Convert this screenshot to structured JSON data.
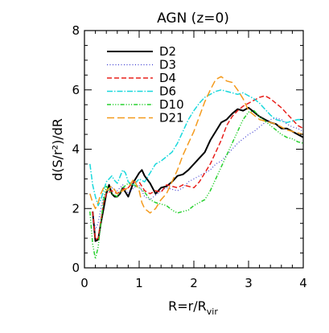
{
  "chart_data": {
    "type": "line",
    "title": "AGN (z=0)",
    "xlabel": "R=r/R_vir",
    "xlabel_main": "R=r/R",
    "xlabel_sub": "vir",
    "ylabel": "d(S/r²)/dR",
    "xlim": [
      0,
      4
    ],
    "ylim": [
      0,
      8
    ],
    "xticks": [
      0,
      1,
      2,
      3,
      4
    ],
    "yticks": [
      0,
      2,
      4,
      6,
      8
    ],
    "grid": false,
    "legend_position": "top-left",
    "series": [
      {
        "name": "D2",
        "color": "#000000",
        "dash": "",
        "width": 2,
        "x": [
          0.15,
          0.2,
          0.25,
          0.3,
          0.35,
          0.4,
          0.45,
          0.5,
          0.55,
          0.6,
          0.65,
          0.7,
          0.8,
          0.9,
          1.0,
          1.05,
          1.1,
          1.2,
          1.3,
          1.4,
          1.5,
          1.6,
          1.7,
          1.8,
          1.9,
          2.0,
          2.1,
          2.2,
          2.3,
          2.4,
          2.5,
          2.6,
          2.7,
          2.8,
          2.9,
          3.0,
          3.1,
          3.2,
          3.3,
          3.4,
          3.5,
          3.6,
          3.7,
          3.8,
          3.9,
          4.0
        ],
        "y": [
          1.9,
          0.9,
          0.95,
          1.5,
          2.0,
          2.5,
          2.8,
          2.5,
          2.4,
          2.4,
          2.5,
          2.7,
          2.4,
          2.9,
          3.2,
          3.3,
          3.1,
          2.85,
          2.5,
          2.7,
          2.75,
          2.9,
          3.1,
          3.15,
          3.3,
          3.5,
          3.7,
          3.9,
          4.3,
          4.6,
          4.9,
          5.0,
          5.2,
          5.35,
          5.3,
          5.4,
          5.25,
          5.1,
          5.0,
          4.9,
          4.85,
          4.7,
          4.7,
          4.6,
          4.5,
          4.4
        ]
      },
      {
        "name": "D3",
        "color": "#3b3bd1",
        "dash": "1,2.5",
        "width": 1.2,
        "x": [
          0.15,
          0.2,
          0.25,
          0.3,
          0.35,
          0.4,
          0.5,
          0.6,
          0.7,
          0.8,
          0.9,
          1.0,
          1.1,
          1.2,
          1.3,
          1.4,
          1.5,
          1.6,
          1.7,
          1.8,
          1.9,
          2.0,
          2.1,
          2.2,
          2.3,
          2.4,
          2.5,
          2.6,
          2.7,
          2.8,
          2.9,
          3.0,
          3.1,
          3.2,
          3.3,
          3.4,
          3.5,
          3.6,
          3.7,
          3.8,
          3.9,
          4.0
        ],
        "y": [
          1.9,
          1.3,
          1.5,
          2.0,
          2.4,
          2.6,
          2.7,
          2.6,
          2.8,
          2.5,
          2.7,
          2.8,
          2.4,
          2.3,
          2.45,
          2.6,
          2.7,
          2.65,
          2.6,
          2.7,
          2.9,
          3.0,
          3.1,
          3.2,
          3.3,
          3.5,
          3.6,
          3.8,
          4.0,
          4.2,
          4.35,
          4.5,
          4.6,
          4.75,
          4.9,
          5.0,
          5.05,
          5.0,
          4.85,
          4.75,
          4.7,
          4.6
        ]
      },
      {
        "name": "D4",
        "color": "#e8201c",
        "dash": "6,3",
        "width": 1.5,
        "x": [
          0.15,
          0.2,
          0.25,
          0.3,
          0.35,
          0.4,
          0.5,
          0.6,
          0.7,
          0.8,
          0.9,
          1.0,
          1.1,
          1.2,
          1.3,
          1.4,
          1.5,
          1.6,
          1.7,
          1.8,
          1.9,
          2.0,
          2.1,
          2.2,
          2.3,
          2.4,
          2.5,
          2.6,
          2.7,
          2.8,
          2.9,
          3.0,
          3.1,
          3.2,
          3.3,
          3.4,
          3.5,
          3.6,
          3.7,
          3.8,
          3.9,
          4.0
        ],
        "y": [
          1.9,
          0.95,
          1.0,
          1.6,
          2.2,
          2.5,
          2.6,
          2.5,
          2.65,
          2.7,
          2.9,
          2.9,
          2.6,
          2.5,
          2.6,
          2.55,
          2.8,
          2.75,
          2.7,
          2.8,
          2.75,
          2.7,
          2.9,
          3.2,
          3.5,
          3.9,
          4.3,
          4.8,
          5.1,
          5.3,
          5.45,
          5.55,
          5.65,
          5.75,
          5.8,
          5.7,
          5.55,
          5.4,
          5.2,
          5.0,
          4.8,
          4.7
        ]
      },
      {
        "name": "D6",
        "color": "#19d8dc",
        "dash": "7,2,1.5,2",
        "width": 1.5,
        "x": [
          0.1,
          0.15,
          0.2,
          0.25,
          0.3,
          0.35,
          0.4,
          0.5,
          0.55,
          0.6,
          0.7,
          0.75,
          0.8,
          0.9,
          1.0,
          1.1,
          1.2,
          1.3,
          1.4,
          1.5,
          1.6,
          1.7,
          1.8,
          1.9,
          2.0,
          2.1,
          2.2,
          2.3,
          2.4,
          2.5,
          2.6,
          2.7,
          2.8,
          2.9,
          3.0,
          3.1,
          3.2,
          3.3,
          3.4,
          3.5,
          3.6,
          3.7,
          3.8,
          3.9,
          4.0
        ],
        "y": [
          3.5,
          2.8,
          2.4,
          2.1,
          2.3,
          2.6,
          2.9,
          3.1,
          2.95,
          2.85,
          3.3,
          3.2,
          2.9,
          2.8,
          3.0,
          2.9,
          3.2,
          3.5,
          3.6,
          3.75,
          3.9,
          4.2,
          4.6,
          5.0,
          5.3,
          5.55,
          5.75,
          5.85,
          5.95,
          6.0,
          5.95,
          5.9,
          5.85,
          5.9,
          5.8,
          5.7,
          5.55,
          5.35,
          5.15,
          5.0,
          4.95,
          4.9,
          4.95,
          5.0,
          5.0
        ]
      },
      {
        "name": "D10",
        "color": "#27d12e",
        "dash": "5,2,1.2,2,1.2,2,1.2,2",
        "width": 1.5,
        "x": [
          0.1,
          0.15,
          0.2,
          0.25,
          0.3,
          0.35,
          0.4,
          0.5,
          0.6,
          0.7,
          0.8,
          0.9,
          1.0,
          1.1,
          1.2,
          1.3,
          1.4,
          1.5,
          1.6,
          1.7,
          1.8,
          1.9,
          2.0,
          2.1,
          2.2,
          2.3,
          2.4,
          2.5,
          2.6,
          2.7,
          2.8,
          2.9,
          3.0,
          3.1,
          3.2,
          3.3,
          3.4,
          3.5,
          3.6,
          3.7,
          3.8,
          3.9,
          4.0
        ],
        "y": [
          1.9,
          0.8,
          0.3,
          0.7,
          1.5,
          2.3,
          2.75,
          2.5,
          2.4,
          2.7,
          2.85,
          2.8,
          2.7,
          2.55,
          2.3,
          2.2,
          2.15,
          2.1,
          1.95,
          1.85,
          1.9,
          1.95,
          2.1,
          2.2,
          2.3,
          2.6,
          3.0,
          3.4,
          3.8,
          4.2,
          4.6,
          5.0,
          5.25,
          5.3,
          5.1,
          4.95,
          4.8,
          4.65,
          4.5,
          4.4,
          4.35,
          4.25,
          4.2
        ]
      },
      {
        "name": "D21",
        "color": "#f49a1c",
        "dash": "9,4",
        "width": 1.5,
        "x": [
          0.1,
          0.15,
          0.2,
          0.25,
          0.3,
          0.35,
          0.4,
          0.5,
          0.6,
          0.7,
          0.8,
          0.9,
          1.0,
          1.05,
          1.1,
          1.2,
          1.3,
          1.4,
          1.5,
          1.6,
          1.7,
          1.8,
          1.9,
          2.0,
          2.1,
          2.2,
          2.3,
          2.4,
          2.5,
          2.6,
          2.7,
          2.8,
          2.9,
          3.0,
          3.1,
          3.2,
          3.3,
          3.4,
          3.5,
          3.6,
          3.7,
          3.8,
          3.9,
          4.0
        ],
        "y": [
          2.5,
          2.2,
          2.0,
          2.2,
          2.5,
          2.7,
          2.6,
          2.75,
          2.5,
          2.6,
          2.7,
          3.0,
          2.6,
          2.2,
          2.0,
          1.85,
          2.0,
          2.3,
          2.5,
          2.9,
          3.3,
          3.8,
          4.2,
          4.6,
          5.1,
          5.6,
          6.0,
          6.35,
          6.45,
          6.3,
          6.25,
          6.0,
          5.7,
          5.3,
          5.15,
          5.0,
          4.95,
          4.9,
          4.85,
          4.75,
          4.65,
          4.6,
          4.55,
          4.5
        ]
      }
    ]
  }
}
